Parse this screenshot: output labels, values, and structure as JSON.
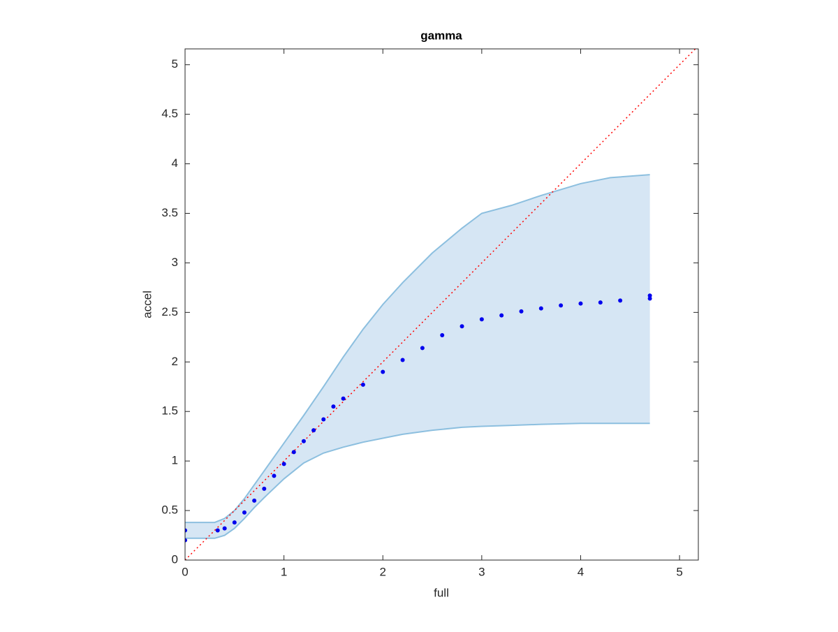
{
  "chart_data": {
    "type": "scatter",
    "title": "gamma",
    "x_label": "full",
    "y_label": "accel",
    "xlim": [
      0,
      5.19
    ],
    "ylim": [
      0,
      5.16
    ],
    "xticks": [
      0,
      1,
      2,
      3,
      4,
      5
    ],
    "yticks": [
      0,
      0.5,
      1,
      1.5,
      2,
      2.5,
      3,
      3.5,
      4,
      4.5,
      5
    ],
    "series": [
      {
        "type": "band",
        "color": "#d6e6f4",
        "edge_color": "#8cbfdf",
        "x": [
          0,
          0.3,
          0.4,
          0.5,
          0.6,
          0.7,
          0.8,
          1.0,
          1.2,
          1.4,
          1.6,
          1.8,
          2.0,
          2.2,
          2.5,
          2.8,
          3.0,
          3.3,
          3.6,
          4.0,
          4.3,
          4.7
        ],
        "lower": [
          0.22,
          0.22,
          0.25,
          0.32,
          0.42,
          0.53,
          0.63,
          0.82,
          0.98,
          1.08,
          1.14,
          1.19,
          1.23,
          1.27,
          1.31,
          1.34,
          1.35,
          1.36,
          1.37,
          1.38,
          1.38,
          1.38
        ],
        "upper": [
          0.38,
          0.38,
          0.42,
          0.5,
          0.62,
          0.76,
          0.9,
          1.18,
          1.46,
          1.75,
          2.05,
          2.33,
          2.58,
          2.8,
          3.1,
          3.35,
          3.5,
          3.58,
          3.68,
          3.8,
          3.86,
          3.89
        ]
      },
      {
        "type": "line",
        "color": "#ff0000",
        "dotted": true,
        "x": [
          0,
          5.16
        ],
        "y": [
          0,
          5.16
        ]
      },
      {
        "type": "points",
        "color": "#0000ee",
        "x": [
          0,
          0,
          0.33,
          0.4,
          0.5,
          0.6,
          0.7,
          0.8,
          0.9,
          1.0,
          1.1,
          1.2,
          1.3,
          1.4,
          1.5,
          1.6,
          1.8,
          2.0,
          2.2,
          2.4,
          2.6,
          2.8,
          3.0,
          3.2,
          3.4,
          3.6,
          3.8,
          4.0,
          4.2,
          4.4,
          4.7,
          4.7
        ],
        "y": [
          0.2,
          0.3,
          0.3,
          0.32,
          0.38,
          0.48,
          0.6,
          0.72,
          0.85,
          0.97,
          1.09,
          1.2,
          1.31,
          1.42,
          1.55,
          1.63,
          1.77,
          1.9,
          2.02,
          2.14,
          2.27,
          2.36,
          2.43,
          2.47,
          2.51,
          2.54,
          2.57,
          2.59,
          2.6,
          2.62,
          2.64,
          2.67
        ]
      }
    ]
  }
}
